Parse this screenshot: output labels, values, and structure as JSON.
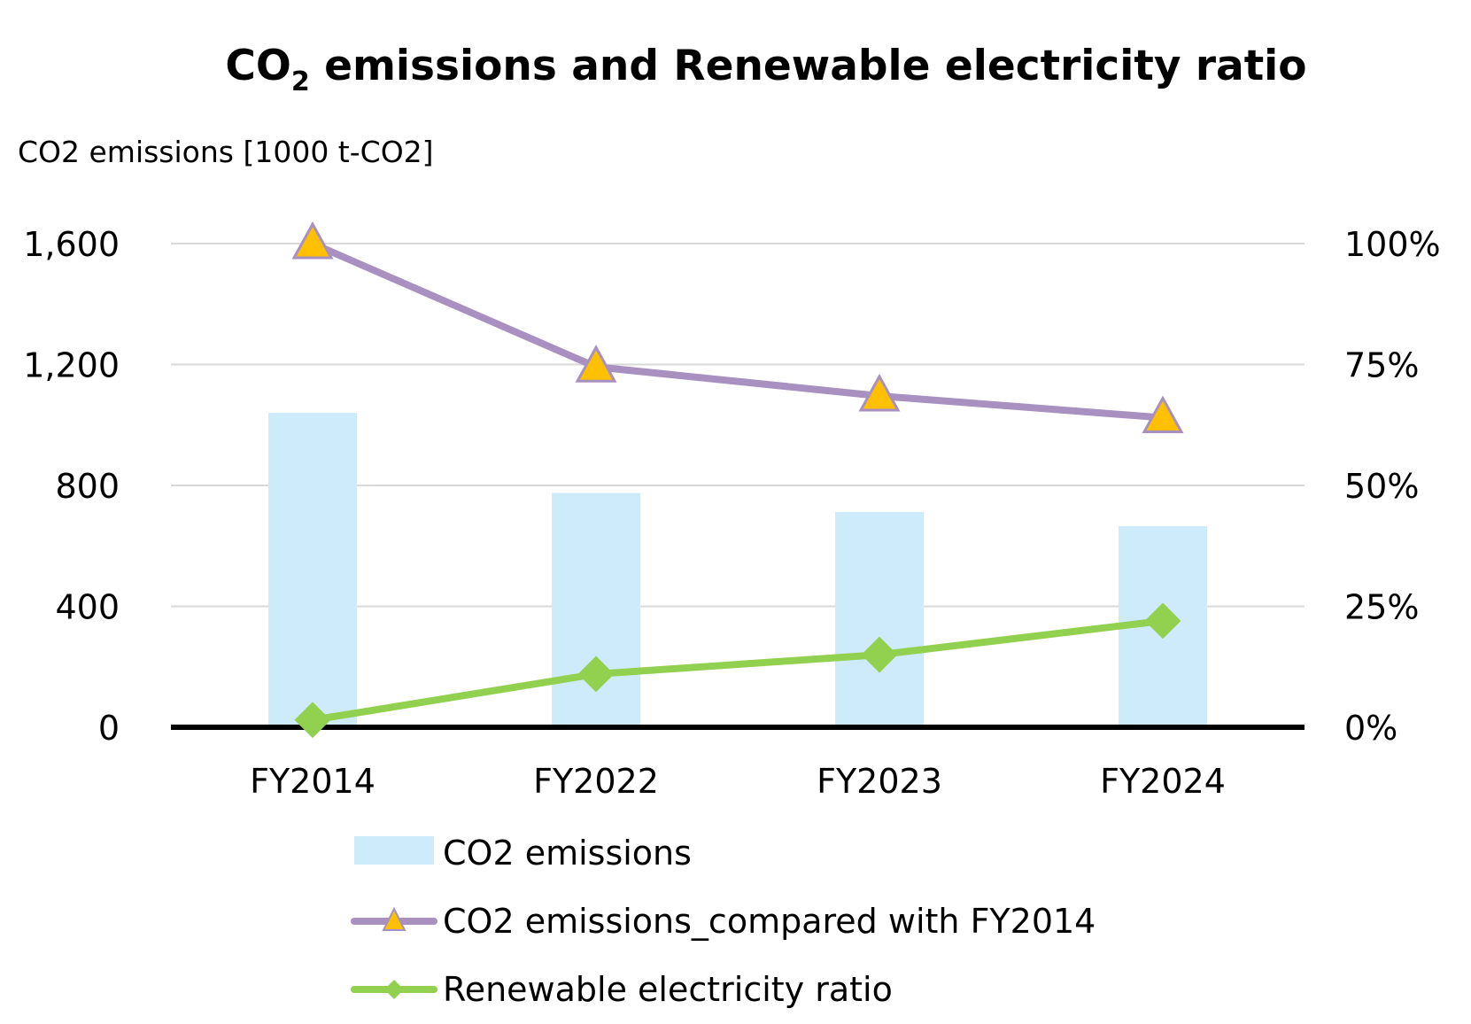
{
  "chart_data": {
    "type": "bar",
    "title": {
      "main": "CO",
      "subscript": "2",
      "rest": " emissions and Renewable electricity ratio"
    },
    "ylabel": "CO2 emissions [1000 t-CO2]",
    "categories": [
      "FY2014",
      "FY2022",
      "FY2023",
      "FY2024"
    ],
    "ylim": [
      0,
      1600
    ],
    "y_ticks": [
      "0",
      "400",
      "800",
      "1,200",
      "1,600"
    ],
    "y2lim": [
      0,
      100
    ],
    "y2_ticks": [
      "0%",
      "25%",
      "50%",
      "75%",
      "100%"
    ],
    "grid": true,
    "legend_position": "bottom",
    "series": [
      {
        "name": "CO2 emissions",
        "kind": "bar",
        "axis": "left",
        "color": "#cdebfb",
        "values": [
          1040,
          775,
          712,
          665
        ]
      },
      {
        "name": "CO2 emissions_compared with FY2014",
        "kind": "line",
        "axis": "right",
        "color": "#a890c0",
        "marker": "triangle",
        "marker_color": "#ffc000",
        "values": [
          100,
          74.5,
          68.5,
          64
        ]
      },
      {
        "name": "Renewable electricity ratio",
        "kind": "line",
        "axis": "right",
        "color": "#92d050",
        "marker": "diamond",
        "marker_color": "#92d050",
        "values": [
          1.5,
          11,
          15,
          22
        ]
      }
    ]
  }
}
